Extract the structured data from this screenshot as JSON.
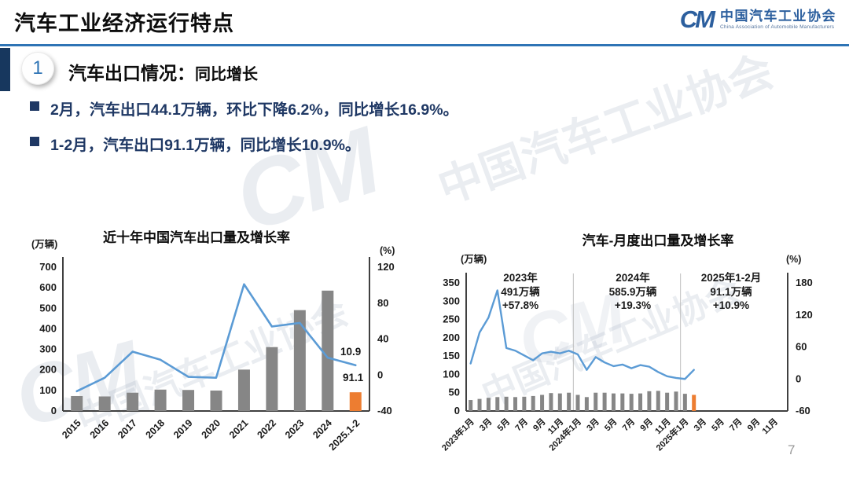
{
  "header": {
    "title": "汽车工业经济运行特点",
    "logo": {
      "mark": "CM",
      "name_cn": "中国汽车工业协会",
      "name_en": "China Association of Automobile Manufacturers"
    }
  },
  "section": {
    "number": "1",
    "title_main": "汽车出口情况：",
    "title_sub": "同比增长"
  },
  "bullets": [
    "2月，汽车出口44.1万辆，环比下降6.2%，同比增长16.9%。",
    "1-2月，汽车出口91.1万辆，同比增长10.9%。"
  ],
  "watermark_text": "中国汽车工业协会",
  "page_number": "7",
  "colors": {
    "accent_blue": "#2E74B5",
    "navy": "#1F3864",
    "bar_gray": "#868686",
    "bar_orange": "#ED7D31",
    "line_blue": "#5B9BD5",
    "axis": "#404040",
    "separator": "#BFBFBF"
  },
  "chart_data": [
    {
      "type": "bar",
      "subtype": "bar+line combo",
      "title": "近十年中国汽车出口量及增长率",
      "left_axis": {
        "label": "(万辆)",
        "min": 0,
        "max": 700,
        "step": 100
      },
      "right_axis": {
        "label": "(%)",
        "min": -40,
        "max": 120,
        "step": 40
      },
      "categories": [
        "2015",
        "2016",
        "2017",
        "2018",
        "2019",
        "2020",
        "2021",
        "2022",
        "2023",
        "2024",
        "2025.1-2"
      ],
      "series": [
        {
          "name": "出口量(万辆)",
          "type": "bar",
          "values": [
            72.8,
            70.8,
            89.1,
            104.1,
            102.4,
            99.5,
            201.5,
            311.1,
            491,
            585.9,
            91.1
          ]
        },
        {
          "name": "增长率(%)",
          "type": "line",
          "values": [
            -18,
            -3,
            26,
            17,
            -2,
            -3,
            101,
            54,
            58,
            19.3,
            10.9
          ]
        }
      ],
      "annotations": [
        {
          "text": "10.9"
        },
        {
          "text": "91.1"
        }
      ],
      "grid": false,
      "legend": false
    },
    {
      "type": "bar",
      "subtype": "bar+line combo",
      "title": "汽车-月度出口量及增长率",
      "left_axis": {
        "label": "(万辆)",
        "min": 0,
        "max": 350,
        "step": 50
      },
      "right_axis": {
        "label": "(%)",
        "min": -60,
        "max": 180,
        "step": 60
      },
      "x_tick_labels": [
        "2023年1月",
        "3月",
        "5月",
        "7月",
        "9月",
        "11月",
        "2024年1月",
        "3月",
        "5月",
        "7月",
        "9月",
        "11月",
        "2025年1月",
        "3月",
        "5月",
        "7月",
        "9月",
        "11月"
      ],
      "months_total": 36,
      "bar_values": [
        30,
        33,
        36,
        38,
        39,
        38,
        39,
        41,
        44,
        49,
        48,
        50,
        44,
        38,
        50,
        50,
        48,
        48,
        47,
        48,
        54,
        55,
        50,
        53,
        47,
        44
      ],
      "line_values": [
        29,
        87,
        115,
        166,
        58,
        53,
        44,
        35,
        48,
        51,
        48,
        53,
        46,
        17,
        41,
        31,
        24,
        27,
        20,
        26,
        23,
        13,
        5,
        2,
        0,
        17
      ],
      "separators_after_month": [
        12,
        24
      ],
      "annotations": [
        {
          "lines": [
            "2023年",
            "491万辆",
            "+57.8%"
          ]
        },
        {
          "lines": [
            "2024年",
            "585.9万辆",
            "+19.3%"
          ]
        },
        {
          "lines": [
            "2025年1-2月",
            "91.1万辆",
            "+10.9%"
          ]
        }
      ],
      "grid": false,
      "legend": false
    }
  ]
}
